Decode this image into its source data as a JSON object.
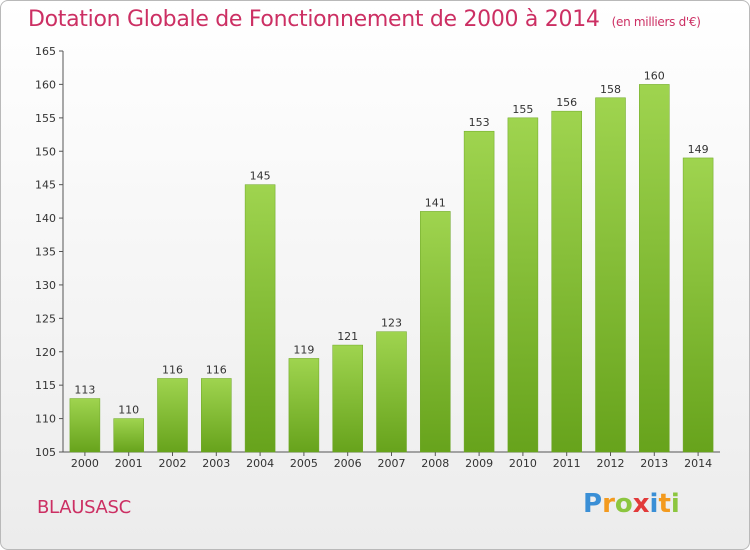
{
  "header": {
    "title": "Dotation Globale de Fonctionnement de 2000 à 2014",
    "subtitle": "(en milliers d'€)"
  },
  "commune": "BLAUSASC",
  "logo": {
    "letters": [
      {
        "char": "P",
        "color": "#3a8fd6"
      },
      {
        "char": "r",
        "color": "#f39a1e"
      },
      {
        "char": "o",
        "color": "#8cc63f"
      },
      {
        "char": "x",
        "color": "#e23a3a"
      },
      {
        "char": "i",
        "color": "#3a8fd6"
      },
      {
        "char": "t",
        "color": "#f39a1e"
      },
      {
        "char": "i",
        "color": "#8cc63f"
      }
    ]
  },
  "chart_data": {
    "type": "bar",
    "categories": [
      "2000",
      "2001",
      "2002",
      "2003",
      "2004",
      "2005",
      "2006",
      "2007",
      "2008",
      "2009",
      "2010",
      "2011",
      "2012",
      "2013",
      "2014"
    ],
    "values": [
      113,
      110,
      116,
      116,
      145,
      119,
      121,
      123,
      141,
      153,
      155,
      156,
      158,
      160,
      149
    ],
    "title": "Dotation Globale de Fonctionnement de 2000 à 2014",
    "subtitle": "(en milliers d'€)",
    "xlabel": "",
    "ylabel": "",
    "ylim": [
      105,
      165
    ],
    "yticks": [
      105,
      110,
      115,
      120,
      125,
      130,
      135,
      140,
      145,
      150,
      155,
      160,
      165
    ],
    "grid": false,
    "bar_color": "#8cc63f",
    "bar_color_dark": "#6aa521"
  }
}
